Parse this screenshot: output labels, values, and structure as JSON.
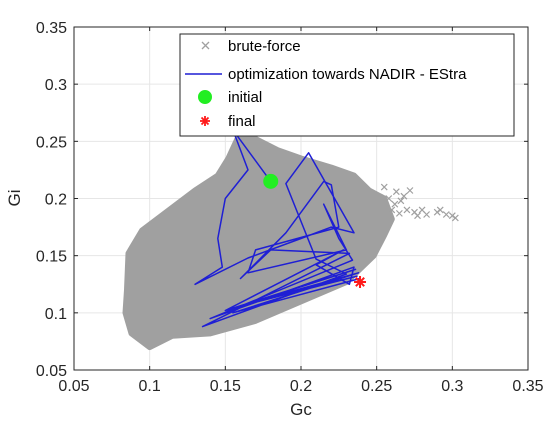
{
  "chart_data": {
    "type": "scatter",
    "xlabel": "Gc",
    "ylabel": "Gi",
    "xlim": [
      0.05,
      0.35
    ],
    "ylim": [
      0.05,
      0.35
    ],
    "x_ticks": [
      "0.05",
      "0.1",
      "0.15",
      "0.2",
      "0.25",
      "0.3",
      "0.35"
    ],
    "y_ticks": [
      "0.05",
      "0.1",
      "0.15",
      "0.2",
      "0.25",
      "0.3",
      "0.35"
    ],
    "grid": true,
    "legend_position": "top-right",
    "series": [
      {
        "name": "brute-force",
        "kind": "cloud",
        "marker": "x",
        "color": "#a0a0a0",
        "boundary": [
          [
            0.088,
            0.082
          ],
          [
            0.1,
            0.07
          ],
          [
            0.115,
            0.08
          ],
          [
            0.14,
            0.082
          ],
          [
            0.17,
            0.093
          ],
          [
            0.2,
            0.11
          ],
          [
            0.23,
            0.127
          ],
          [
            0.248,
            0.15
          ],
          [
            0.255,
            0.168
          ],
          [
            0.26,
            0.182
          ],
          [
            0.255,
            0.2
          ],
          [
            0.245,
            0.207
          ],
          [
            0.235,
            0.22
          ],
          [
            0.22,
            0.227
          ],
          [
            0.2,
            0.235
          ],
          [
            0.185,
            0.242
          ],
          [
            0.17,
            0.252
          ],
          [
            0.158,
            0.252
          ],
          [
            0.152,
            0.235
          ],
          [
            0.145,
            0.22
          ],
          [
            0.13,
            0.207
          ],
          [
            0.11,
            0.187
          ],
          [
            0.095,
            0.172
          ],
          [
            0.086,
            0.152
          ],
          [
            0.085,
            0.12
          ],
          [
            0.084,
            0.1
          ]
        ],
        "outliers": [
          [
            0.26,
            0.19
          ],
          [
            0.265,
            0.187
          ],
          [
            0.27,
            0.19
          ],
          [
            0.275,
            0.188
          ],
          [
            0.283,
            0.186
          ],
          [
            0.29,
            0.188
          ],
          [
            0.3,
            0.185
          ],
          [
            0.302,
            0.183
          ],
          [
            0.258,
            0.2
          ],
          [
            0.263,
            0.206
          ],
          [
            0.268,
            0.202
          ],
          [
            0.272,
            0.207
          ],
          [
            0.262,
            0.195
          ],
          [
            0.28,
            0.19
          ],
          [
            0.292,
            0.19
          ],
          [
            0.296,
            0.186
          ],
          [
            0.266,
            0.198
          ],
          [
            0.277,
            0.185
          ],
          [
            0.255,
            0.21
          ]
        ]
      },
      {
        "name": "optimization towards NADIR - EStra",
        "kind": "line",
        "color": "#1f1fd4",
        "points": [
          [
            0.18,
            0.215
          ],
          [
            0.155,
            0.26
          ],
          [
            0.165,
            0.225
          ],
          [
            0.15,
            0.2
          ],
          [
            0.145,
            0.165
          ],
          [
            0.148,
            0.14
          ],
          [
            0.13,
            0.125
          ],
          [
            0.165,
            0.148
          ],
          [
            0.2,
            0.165
          ],
          [
            0.22,
            0.175
          ],
          [
            0.235,
            0.17
          ],
          [
            0.205,
            0.24
          ],
          [
            0.19,
            0.213
          ],
          [
            0.2,
            0.18
          ],
          [
            0.21,
            0.147
          ],
          [
            0.23,
            0.134
          ],
          [
            0.135,
            0.088
          ],
          [
            0.232,
            0.152
          ],
          [
            0.18,
            0.155
          ],
          [
            0.16,
            0.13
          ],
          [
            0.19,
            0.17
          ],
          [
            0.215,
            0.215
          ],
          [
            0.22,
            0.212
          ],
          [
            0.225,
            0.175
          ],
          [
            0.17,
            0.155
          ],
          [
            0.165,
            0.135
          ],
          [
            0.23,
            0.155
          ],
          [
            0.215,
            0.195
          ],
          [
            0.225,
            0.165
          ],
          [
            0.234,
            0.146
          ],
          [
            0.14,
            0.095
          ],
          [
            0.235,
            0.14
          ],
          [
            0.232,
            0.125
          ],
          [
            0.21,
            0.142
          ],
          [
            0.228,
            0.155
          ],
          [
            0.15,
            0.102
          ],
          [
            0.236,
            0.138
          ],
          [
            0.16,
            0.106
          ],
          [
            0.237,
            0.132
          ],
          [
            0.175,
            0.112
          ],
          [
            0.238,
            0.135
          ],
          [
            0.155,
            0.1
          ],
          [
            0.239,
            0.13
          ]
        ]
      },
      {
        "name": "initial",
        "kind": "marker",
        "marker": "filled-circle",
        "color": "#22ee22",
        "points": [
          [
            0.18,
            0.215
          ]
        ]
      },
      {
        "name": "final",
        "kind": "marker",
        "marker": "asterisk",
        "color": "#ff1a1a",
        "points": [
          [
            0.239,
            0.127
          ]
        ]
      }
    ]
  }
}
